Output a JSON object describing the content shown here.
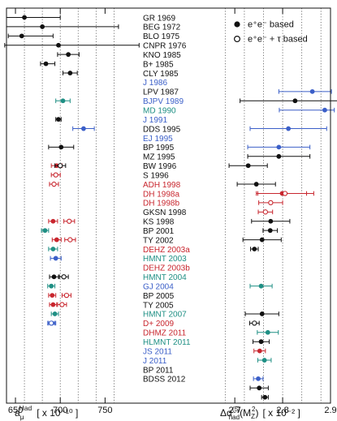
{
  "colors": {
    "black": "#111111",
    "blue": "#3b5fc8",
    "teal": "#1f8f84",
    "red": "#c8262e",
    "grid": "#555555"
  },
  "legend": {
    "filled_label": "e⁺e⁻ based",
    "open_label": "e⁺e⁻ + τ based",
    "position": "top-right"
  },
  "chart_data": [
    {
      "type": "scatter",
      "name": "left_panel",
      "xlabel_main": "a",
      "xlabel_sub": "μ",
      "xlabel_sup": "Had",
      "xlabel_units": "[ x 10⁻¹⁰ ]",
      "xlim": [
        640,
        785
      ],
      "xticks": [
        650,
        700,
        750
      ],
      "dotted_vlines": [
        660,
        680,
        700,
        720,
        740,
        760
      ],
      "points": [
        {
          "row": 0,
          "x": 660,
          "err": [
            20,
            40
          ],
          "color": "black",
          "fill": true
        },
        {
          "row": 1,
          "x": 680,
          "err": [
            40,
            85
          ],
          "color": "black",
          "fill": true
        },
        {
          "row": 2,
          "x": 657,
          "err": [
            15,
            35
          ],
          "color": "black",
          "fill": true
        },
        {
          "row": 3,
          "x": 698,
          "err": [
            60,
            90
          ],
          "color": "black",
          "fill": true
        },
        {
          "row": 4,
          "x": 709,
          "err": [
            12,
            12
          ],
          "color": "black",
          "fill": true
        },
        {
          "row": 5,
          "x": 684,
          "err": [
            6,
            10
          ],
          "color": "black",
          "fill": true
        },
        {
          "row": 6,
          "x": 711,
          "err": [
            8,
            8
          ],
          "color": "black",
          "fill": true
        },
        {
          "row": 9,
          "x": 703,
          "err": [
            8,
            8
          ],
          "color": "teal",
          "fill": true
        },
        {
          "row": 11,
          "x": 698,
          "err": [
            3,
            3
          ],
          "color": "black",
          "fill": true
        },
        {
          "row": 12,
          "x": 726,
          "err": [
            12,
            12
          ],
          "color": "blue",
          "fill": true
        },
        {
          "row": 14,
          "x": 701,
          "err": [
            14,
            14
          ],
          "color": "black",
          "fill": true
        },
        {
          "row": 16,
          "x": 696,
          "err": [
            6,
            6
          ],
          "color": "red",
          "fill": true
        },
        {
          "row": 16,
          "x": 700,
          "err": [
            6,
            6
          ],
          "color": "black",
          "fill": false
        },
        {
          "row": 17,
          "x": 695,
          "err": [
            5,
            5
          ],
          "color": "red",
          "fill": false
        },
        {
          "row": 18,
          "x": 693,
          "err": [
            5,
            5
          ],
          "color": "red",
          "fill": false
        },
        {
          "row": 22,
          "x": 692,
          "err": [
            5,
            5
          ],
          "color": "red",
          "fill": true
        },
        {
          "row": 22,
          "x": 710,
          "err": [
            6,
            6
          ],
          "color": "red",
          "fill": false
        },
        {
          "row": 23,
          "x": 683,
          "err": [
            4,
            4
          ],
          "color": "teal",
          "fill": true
        },
        {
          "row": 24,
          "x": 696,
          "err": [
            5,
            5
          ],
          "color": "red",
          "fill": true
        },
        {
          "row": 24,
          "x": 711,
          "err": [
            6,
            6
          ],
          "color": "red",
          "fill": false
        },
        {
          "row": 25,
          "x": 692,
          "err": [
            5,
            5
          ],
          "color": "teal",
          "fill": true
        },
        {
          "row": 26,
          "x": 695,
          "err": [
            6,
            6
          ],
          "color": "blue",
          "fill": true
        },
        {
          "row": 28,
          "x": 693,
          "err": [
            5,
            5
          ],
          "color": "black",
          "fill": true
        },
        {
          "row": 28,
          "x": 704,
          "err": [
            5,
            5
          ],
          "color": "black",
          "fill": false
        },
        {
          "row": 29,
          "x": 690,
          "err": [
            4,
            4
          ],
          "color": "teal",
          "fill": true
        },
        {
          "row": 30,
          "x": 691,
          "err": [
            4,
            4
          ],
          "color": "red",
          "fill": true
        },
        {
          "row": 30,
          "x": 707,
          "err": [
            5,
            5
          ],
          "color": "red",
          "fill": false
        },
        {
          "row": 31,
          "x": 692,
          "err": [
            4,
            4
          ],
          "color": "red",
          "fill": true
        },
        {
          "row": 31,
          "x": 702,
          "err": [
            5,
            5
          ],
          "color": "red",
          "fill": false
        },
        {
          "row": 32,
          "x": 694,
          "err": [
            4,
            4
          ],
          "color": "teal",
          "fill": true
        },
        {
          "row": 33,
          "x": 691,
          "err": [
            4,
            4
          ],
          "color": "blue",
          "fill": true
        },
        {
          "row": 33,
          "x": 690,
          "err": [
            4,
            4
          ],
          "color": "blue",
          "fill": false
        }
      ]
    },
    {
      "type": "scatter",
      "name": "right_panel",
      "xlabel_main": "Δα",
      "xlabel_sup": "(5)",
      "xlabel_sub": "had",
      "xlabel_arg": "(M",
      "xlabel_arg_sub": "Z",
      "xlabel_arg_sup": "2",
      "xlabel_close": ")",
      "xlabel_units": "[ x 10⁻² ]",
      "xlim": [
        2.62,
        2.9
      ],
      "xticks": [
        2.7,
        2.8,
        2.9
      ],
      "xtick_labels": [
        "2.7",
        "2.8",
        "2.9"
      ],
      "dotted_vlines": [
        2.68,
        2.72,
        2.76,
        2.8,
        2.84,
        2.88
      ],
      "points": [
        {
          "row": 8,
          "x": 2.862,
          "err": [
            0.07,
            0.04
          ],
          "color": "blue",
          "fill": true
        },
        {
          "row": 9,
          "x": 2.826,
          "err": [
            0.115,
            0.115
          ],
          "color": "black",
          "fill": true
        },
        {
          "row": 10,
          "x": 2.888,
          "err": [
            0.095,
            0.02
          ],
          "color": "blue",
          "fill": true
        },
        {
          "row": 12,
          "x": 2.812,
          "err": [
            0.08,
            0.08
          ],
          "color": "blue",
          "fill": true
        },
        {
          "row": 14,
          "x": 2.792,
          "err": [
            0.065,
            0.065
          ],
          "color": "blue",
          "fill": true
        },
        {
          "row": 15,
          "x": 2.792,
          "err": [
            0.065,
            0.065
          ],
          "color": "black",
          "fill": true
        },
        {
          "row": 16,
          "x": 2.728,
          "err": [
            0.04,
            0.04
          ],
          "color": "black",
          "fill": true
        },
        {
          "row": 18,
          "x": 2.745,
          "err": [
            0.04,
            0.04
          ],
          "color": "black",
          "fill": true
        },
        {
          "row": 19,
          "x": 2.799,
          "err": [
            0.051,
            0.051
          ],
          "color": "red",
          "fill": true
        },
        {
          "row": 19,
          "x": 2.805,
          "err": [
            0.06,
            0.06
          ],
          "color": "red",
          "fill": false
        },
        {
          "row": 20,
          "x": 2.775,
          "err": [
            0.025,
            0.025
          ],
          "color": "red",
          "fill": false
        },
        {
          "row": 21,
          "x": 2.764,
          "err": [
            0.015,
            0.015
          ],
          "color": "red",
          "fill": false
        },
        {
          "row": 22,
          "x": 2.775,
          "err": [
            0.04,
            0.04
          ],
          "color": "black",
          "fill": true
        },
        {
          "row": 23,
          "x": 2.774,
          "err": [
            0.015,
            0.015
          ],
          "color": "black",
          "fill": true
        },
        {
          "row": 24,
          "x": 2.757,
          "err": [
            0.04,
            0.04
          ],
          "color": "black",
          "fill": true
        },
        {
          "row": 25,
          "x": 2.741,
          "err": [
            0.008,
            0.008
          ],
          "color": "black",
          "fill": true
        },
        {
          "row": 29,
          "x": 2.755,
          "err": [
            0.023,
            0.023
          ],
          "color": "teal",
          "fill": true
        },
        {
          "row": 32,
          "x": 2.757,
          "err": [
            0.035,
            0.035
          ],
          "color": "black",
          "fill": true
        },
        {
          "row": 33,
          "x": 2.741,
          "err": [
            0.01,
            0.01
          ],
          "color": "black",
          "fill": false
        },
        {
          "row": 34,
          "x": 2.769,
          "err": [
            0.022,
            0.022
          ],
          "color": "teal",
          "fill": true
        },
        {
          "row": 35,
          "x": 2.755,
          "err": [
            0.017,
            0.017
          ],
          "color": "black",
          "fill": true
        },
        {
          "row": 36,
          "x": 2.752,
          "err": [
            0.012,
            0.012
          ],
          "color": "red",
          "fill": true
        },
        {
          "row": 37,
          "x": 2.762,
          "err": [
            0.014,
            0.014
          ],
          "color": "teal",
          "fill": true
        },
        {
          "row": 39,
          "x": 2.749,
          "err": [
            0.01,
            0.01
          ],
          "color": "blue",
          "fill": true
        },
        {
          "row": 40,
          "x": 2.751,
          "err": [
            0.019,
            0.019
          ],
          "color": "black",
          "fill": true
        },
        {
          "row": 41,
          "x": 2.763,
          "err": [
            0.007,
            0.007
          ],
          "color": "black",
          "fill": true
        }
      ]
    }
  ],
  "rows": [
    {
      "label": "GR 1969",
      "color": "black"
    },
    {
      "label": "BEG 1972",
      "color": "black"
    },
    {
      "label": "BLO 1975",
      "color": "black"
    },
    {
      "label": "CNPR 1976",
      "color": "black"
    },
    {
      "label": "KNO 1985",
      "color": "black"
    },
    {
      "label": "B+ 1985",
      "color": "black"
    },
    {
      "label": "CLY 1985",
      "color": "black"
    },
    {
      "label": "J 1986",
      "color": "blue"
    },
    {
      "label": "LPV 1987",
      "color": "black"
    },
    {
      "label": "BJPV 1989",
      "color": "blue"
    },
    {
      "label": "MD 1990",
      "color": "teal"
    },
    {
      "label": "J 1991",
      "color": "blue"
    },
    {
      "label": "DDS 1995",
      "color": "black"
    },
    {
      "label": "EJ 1995",
      "color": "blue"
    },
    {
      "label": "BP 1995",
      "color": "black"
    },
    {
      "label": "MZ 1995",
      "color": "black"
    },
    {
      "label": "BW 1996",
      "color": "black"
    },
    {
      "label": "S 1996",
      "color": "black"
    },
    {
      "label": "ADH 1998",
      "color": "red"
    },
    {
      "label": "DH 1998a",
      "color": "red"
    },
    {
      "label": "DH 1998b",
      "color": "red"
    },
    {
      "label": "GKSN 1998",
      "color": "black"
    },
    {
      "label": "KS 1998",
      "color": "black"
    },
    {
      "label": "BP 2001",
      "color": "black"
    },
    {
      "label": "TY 2002",
      "color": "black"
    },
    {
      "label": "DEHZ 2003a",
      "color": "red"
    },
    {
      "label": "HMNT 2003",
      "color": "teal"
    },
    {
      "label": "DEHZ 2003b",
      "color": "red"
    },
    {
      "label": "HMNT 2004",
      "color": "teal"
    },
    {
      "label": "GJ 2004",
      "color": "blue"
    },
    {
      "label": "BP 2005",
      "color": "black"
    },
    {
      "label": "TY 2005",
      "color": "black"
    },
    {
      "label": "HMNT 2007",
      "color": "teal"
    },
    {
      "label": "D+ 2009",
      "color": "red"
    },
    {
      "label": "DHMZ 2011",
      "color": "red"
    },
    {
      "label": "HLMNT 2011",
      "color": "teal"
    },
    {
      "label": "JS 2011",
      "color": "blue"
    },
    {
      "label": "J 2011",
      "color": "blue"
    },
    {
      "label": "BP 2011",
      "color": "black"
    },
    {
      "label": "BDSS 2012",
      "color": "black"
    }
  ]
}
